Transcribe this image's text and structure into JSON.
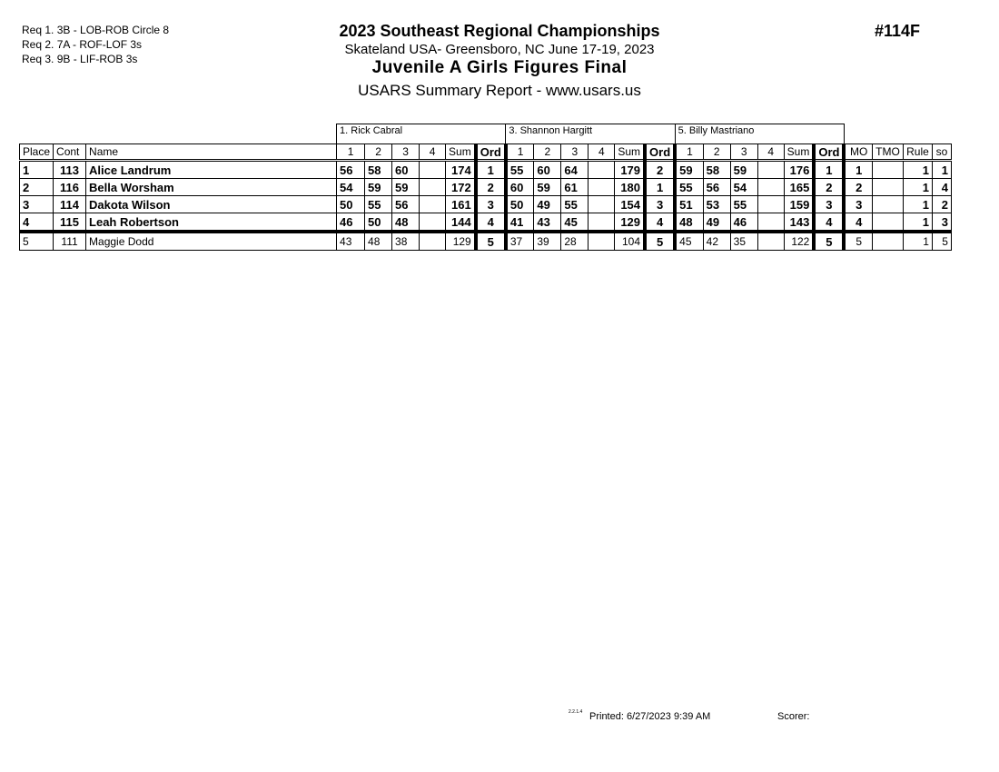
{
  "requirements": [
    "Req  1.  3B - LOB-ROB Circle 8",
    "Req  2.  7A - ROF-LOF 3s",
    "Req  3.  9B - LIF-ROB 3s"
  ],
  "header": {
    "title": "2023 Southeast Regional Championships",
    "venue": "Skateland USA- Greensboro, NC  June 17-19, 2023",
    "event": "Juvenile A Girls Figures Final",
    "report": "USARS Summary Report - www.usars.us",
    "event_number": "#114F"
  },
  "judges": [
    "1.  Rick Cabral",
    "3.  Shannon Hargitt",
    "5.  Billy Mastriano"
  ],
  "columns": {
    "place": "Place",
    "cont": "Cont",
    "name": "Name",
    "judge_cols": [
      "1",
      "2",
      "3",
      "4",
      "Sum",
      "Ord"
    ],
    "mo": "MO",
    "tmo": "TMO",
    "rule": "Rule",
    "so": "so"
  },
  "rows": [
    {
      "place": "1",
      "cont": "113",
      "name": "Alice Landrum",
      "bold": true,
      "judges": [
        [
          "56",
          "58",
          "60",
          "",
          "174",
          "1"
        ],
        [
          "55",
          "60",
          "64",
          "",
          "179",
          "2"
        ],
        [
          "59",
          "58",
          "59",
          "",
          "176",
          "1"
        ]
      ],
      "mo": "1",
      "tmo": "",
      "rule": "1",
      "so": "1"
    },
    {
      "place": "2",
      "cont": "116",
      "name": "Bella Worsham",
      "bold": true,
      "judges": [
        [
          "54",
          "59",
          "59",
          "",
          "172",
          "2"
        ],
        [
          "60",
          "59",
          "61",
          "",
          "180",
          "1"
        ],
        [
          "55",
          "56",
          "54",
          "",
          "165",
          "2"
        ]
      ],
      "mo": "2",
      "tmo": "",
      "rule": "1",
      "so": "4"
    },
    {
      "place": "3",
      "cont": "114",
      "name": "Dakota Wilson",
      "bold": true,
      "judges": [
        [
          "50",
          "55",
          "56",
          "",
          "161",
          "3"
        ],
        [
          "50",
          "49",
          "55",
          "",
          "154",
          "3"
        ],
        [
          "51",
          "53",
          "55",
          "",
          "159",
          "3"
        ]
      ],
      "mo": "3",
      "tmo": "",
      "rule": "1",
      "so": "2"
    },
    {
      "place": "4",
      "cont": "115",
      "name": "Leah Robertson",
      "bold": true,
      "judges": [
        [
          "46",
          "50",
          "48",
          "",
          "144",
          "4"
        ],
        [
          "41",
          "43",
          "45",
          "",
          "129",
          "4"
        ],
        [
          "48",
          "49",
          "46",
          "",
          "143",
          "4"
        ]
      ],
      "mo": "4",
      "tmo": "",
      "rule": "1",
      "so": "3"
    },
    {
      "place": "5",
      "cont": "111",
      "name": "Maggie Dodd",
      "bold": false,
      "judges": [
        [
          "43",
          "48",
          "38",
          "",
          "129",
          "5"
        ],
        [
          "37",
          "39",
          "28",
          "",
          "104",
          "5"
        ],
        [
          "45",
          "42",
          "35",
          "",
          "122",
          "5"
        ]
      ],
      "mo": "5",
      "tmo": "",
      "rule": "1",
      "so": "5"
    }
  ],
  "footer": {
    "version": "2.2.1.4",
    "printed": "Printed:  6/27/2023  9:39 AM",
    "scorer": "Scorer:"
  }
}
